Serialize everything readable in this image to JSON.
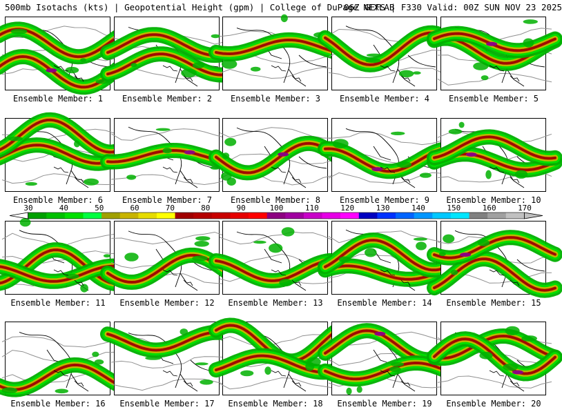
{
  "header": {
    "left": "500mb Isotachs (kts) | Geopotential Height (gpm) | College of DuPage NEXLAB",
    "right": "06Z GEFS | F330 Valid: 00Z SUN NOV 23 2025"
  },
  "caption_prefix": "Ensemble Member:",
  "members": [
    {
      "label": "Ensemble Member: 1",
      "number": 1
    },
    {
      "label": "Ensemble Member: 2",
      "number": 2
    },
    {
      "label": "Ensemble Member: 3",
      "number": 3
    },
    {
      "label": "Ensemble Member: 4",
      "number": 4
    },
    {
      "label": "Ensemble Member: 5",
      "number": 5
    },
    {
      "label": "Ensemble Member: 6",
      "number": 6
    },
    {
      "label": "Ensemble Member: 7",
      "number": 7
    },
    {
      "label": "Ensemble Member: 8",
      "number": 8
    },
    {
      "label": "Ensemble Member: 9",
      "number": 9
    },
    {
      "label": "Ensemble Member: 10",
      "number": 10
    },
    {
      "label": "Ensemble Member: 11",
      "number": 11
    },
    {
      "label": "Ensemble Member: 12",
      "number": 12
    },
    {
      "label": "Ensemble Member: 13",
      "number": 13
    },
    {
      "label": "Ensemble Member: 14",
      "number": 14
    },
    {
      "label": "Ensemble Member: 15",
      "number": 15
    },
    {
      "label": "Ensemble Member: 16",
      "number": 16
    },
    {
      "label": "Ensemble Member: 17",
      "number": 17
    },
    {
      "label": "Ensemble Member: 18",
      "number": 18
    },
    {
      "label": "Ensemble Member: 19",
      "number": 19
    },
    {
      "label": "Ensemble Member: 20",
      "number": 20
    }
  ],
  "colorbar": {
    "ticks": [
      30,
      40,
      50,
      60,
      70,
      80,
      90,
      100,
      110,
      120,
      130,
      140,
      150,
      160,
      170
    ],
    "colors": [
      "#00a000",
      "#00c000",
      "#00e000",
      "#00ff40",
      "#a0a000",
      "#c8b400",
      "#e6dc00",
      "#ffff00",
      "#a00000",
      "#b40000",
      "#c80000",
      "#e60000",
      "#ff0000",
      "#8c0080",
      "#a000a0",
      "#c800c8",
      "#e600e6",
      "#ff00ff",
      "#0000c0",
      "#0032ff",
      "#0064ff",
      "#0096ff",
      "#00c8ff",
      "#00e6ff",
      "#808080",
      "#a0a0a0",
      "#c0c0c0"
    ]
  },
  "map_colors": {
    "land_border": "#000000",
    "height_contour": "#909090",
    "jet_low": "#00b000",
    "jet_mid": "#00e000",
    "jet_high": "#c8b400",
    "jet_core": "#a00000",
    "jet_peak": "#8c0080"
  }
}
